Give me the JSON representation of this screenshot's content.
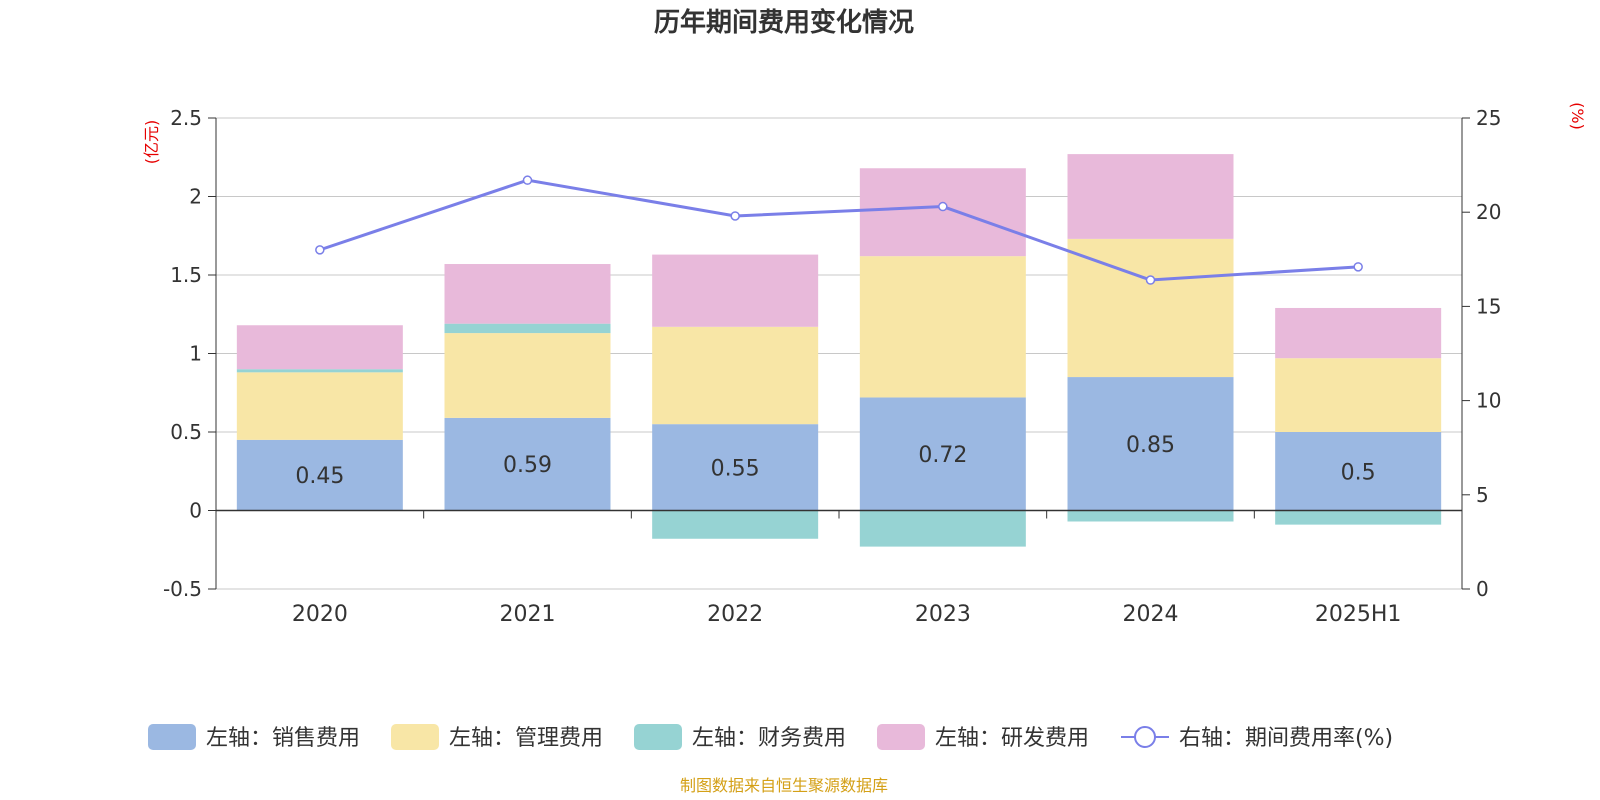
{
  "chart_data": {
    "type": "bar",
    "title": "历年期间费用变化情况",
    "left_axis_unit": "(亿元)",
    "right_axis_unit": "(%)",
    "categories": [
      "2020",
      "2021",
      "2022",
      "2023",
      "2024",
      "2025H1"
    ],
    "ylim_left": [
      -0.5,
      2.5
    ],
    "left_ticks": [
      "-0.5",
      "0",
      "0.5",
      "1",
      "1.5",
      "2",
      "2.5"
    ],
    "ylim_right": [
      0,
      25
    ],
    "right_ticks": [
      "0",
      "5",
      "10",
      "15",
      "20",
      "25"
    ],
    "grid": true,
    "legend_position": "bottom",
    "series": [
      {
        "name": "左轴：销售费用",
        "axis": "left",
        "kind": "bar",
        "color": "#9bb8e2",
        "values": [
          0.45,
          0.59,
          0.55,
          0.72,
          0.85,
          0.5
        ],
        "labels": [
          "0.45",
          "0.59",
          "0.55",
          "0.72",
          "0.85",
          "0.5"
        ]
      },
      {
        "name": "左轴：管理费用",
        "axis": "left",
        "kind": "bar",
        "color": "#f8e6a6",
        "values": [
          0.43,
          0.54,
          0.62,
          0.9,
          0.88,
          0.47
        ]
      },
      {
        "name": "左轴：财务费用",
        "axis": "left",
        "kind": "bar",
        "color": "#96d3d3",
        "values": [
          0.02,
          0.06,
          -0.18,
          -0.23,
          -0.07,
          -0.09
        ]
      },
      {
        "name": "左轴：研发费用",
        "axis": "left",
        "kind": "bar",
        "color": "#e8b9da",
        "values": [
          0.28,
          0.38,
          0.46,
          0.56,
          0.54,
          0.32
        ]
      },
      {
        "name": "右轴：期间费用率(%)",
        "axis": "right",
        "kind": "line",
        "color": "#7a7fe8",
        "values": [
          18.0,
          21.7,
          19.8,
          20.3,
          16.4,
          17.1
        ]
      }
    ]
  },
  "footer": {
    "source": "制图数据来自恒生聚源数据库"
  },
  "colors": {
    "title": "#333333",
    "axis_unit": "#e60000",
    "axis_text": "#333333",
    "grid": "#c8c8c8",
    "source": "#d4a017"
  }
}
